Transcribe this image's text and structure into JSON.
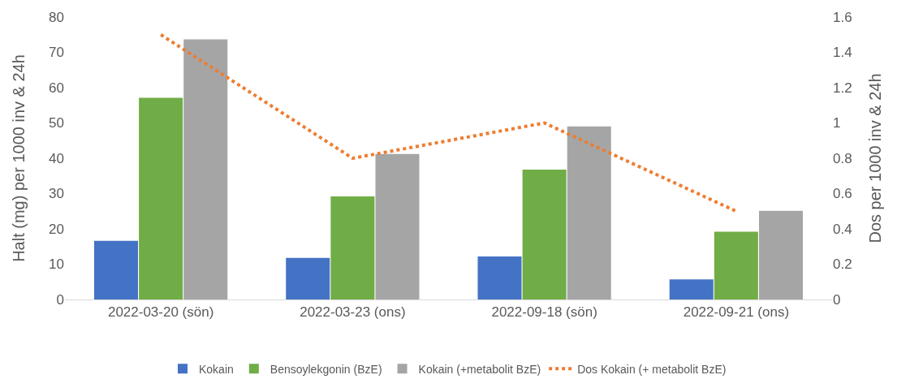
{
  "chart_data": {
    "type": "bar",
    "ylabel": "Halt (mg) per 1000 inv & 24h",
    "y2label": "Dos per 1000 inv & 24h",
    "categories": [
      "2022-03-20 (sön)",
      "2022-03-23 (ons)",
      "2022-09-18 (sön)",
      "2022-09-21 (ons)"
    ],
    "series": [
      {
        "name": "Kokain",
        "color": "#4472c4",
        "values": [
          16.6,
          11.8,
          12.2,
          5.7
        ]
      },
      {
        "name": "Bensoylekgonin (BzE)",
        "color": "#70ad47",
        "values": [
          57.1,
          29.2,
          36.8,
          19.2
        ]
      },
      {
        "name": "Kokain (+metabolit BzE)",
        "color": "#a5a5a5",
        "values": [
          73.7,
          41.2,
          49.0,
          25.1
        ]
      },
      {
        "name": "Dos Kokain (+ metabolit BzE)",
        "color": "#ed7d31",
        "type": "line",
        "axis": "y2",
        "line_style": "dotted",
        "marker": "none",
        "values": [
          1.5,
          0.8,
          1.0,
          0.5
        ]
      }
    ],
    "ylim": [
      0,
      80
    ],
    "yticks": [
      0,
      10,
      20,
      30,
      40,
      50,
      60,
      70,
      80
    ],
    "y2lim": [
      0,
      1.6
    ],
    "y2ticks": [
      0,
      0.2,
      0.4,
      0.6,
      0.8,
      1,
      1.2,
      1.4,
      1.6
    ],
    "grid": false,
    "legend": "bottom"
  }
}
